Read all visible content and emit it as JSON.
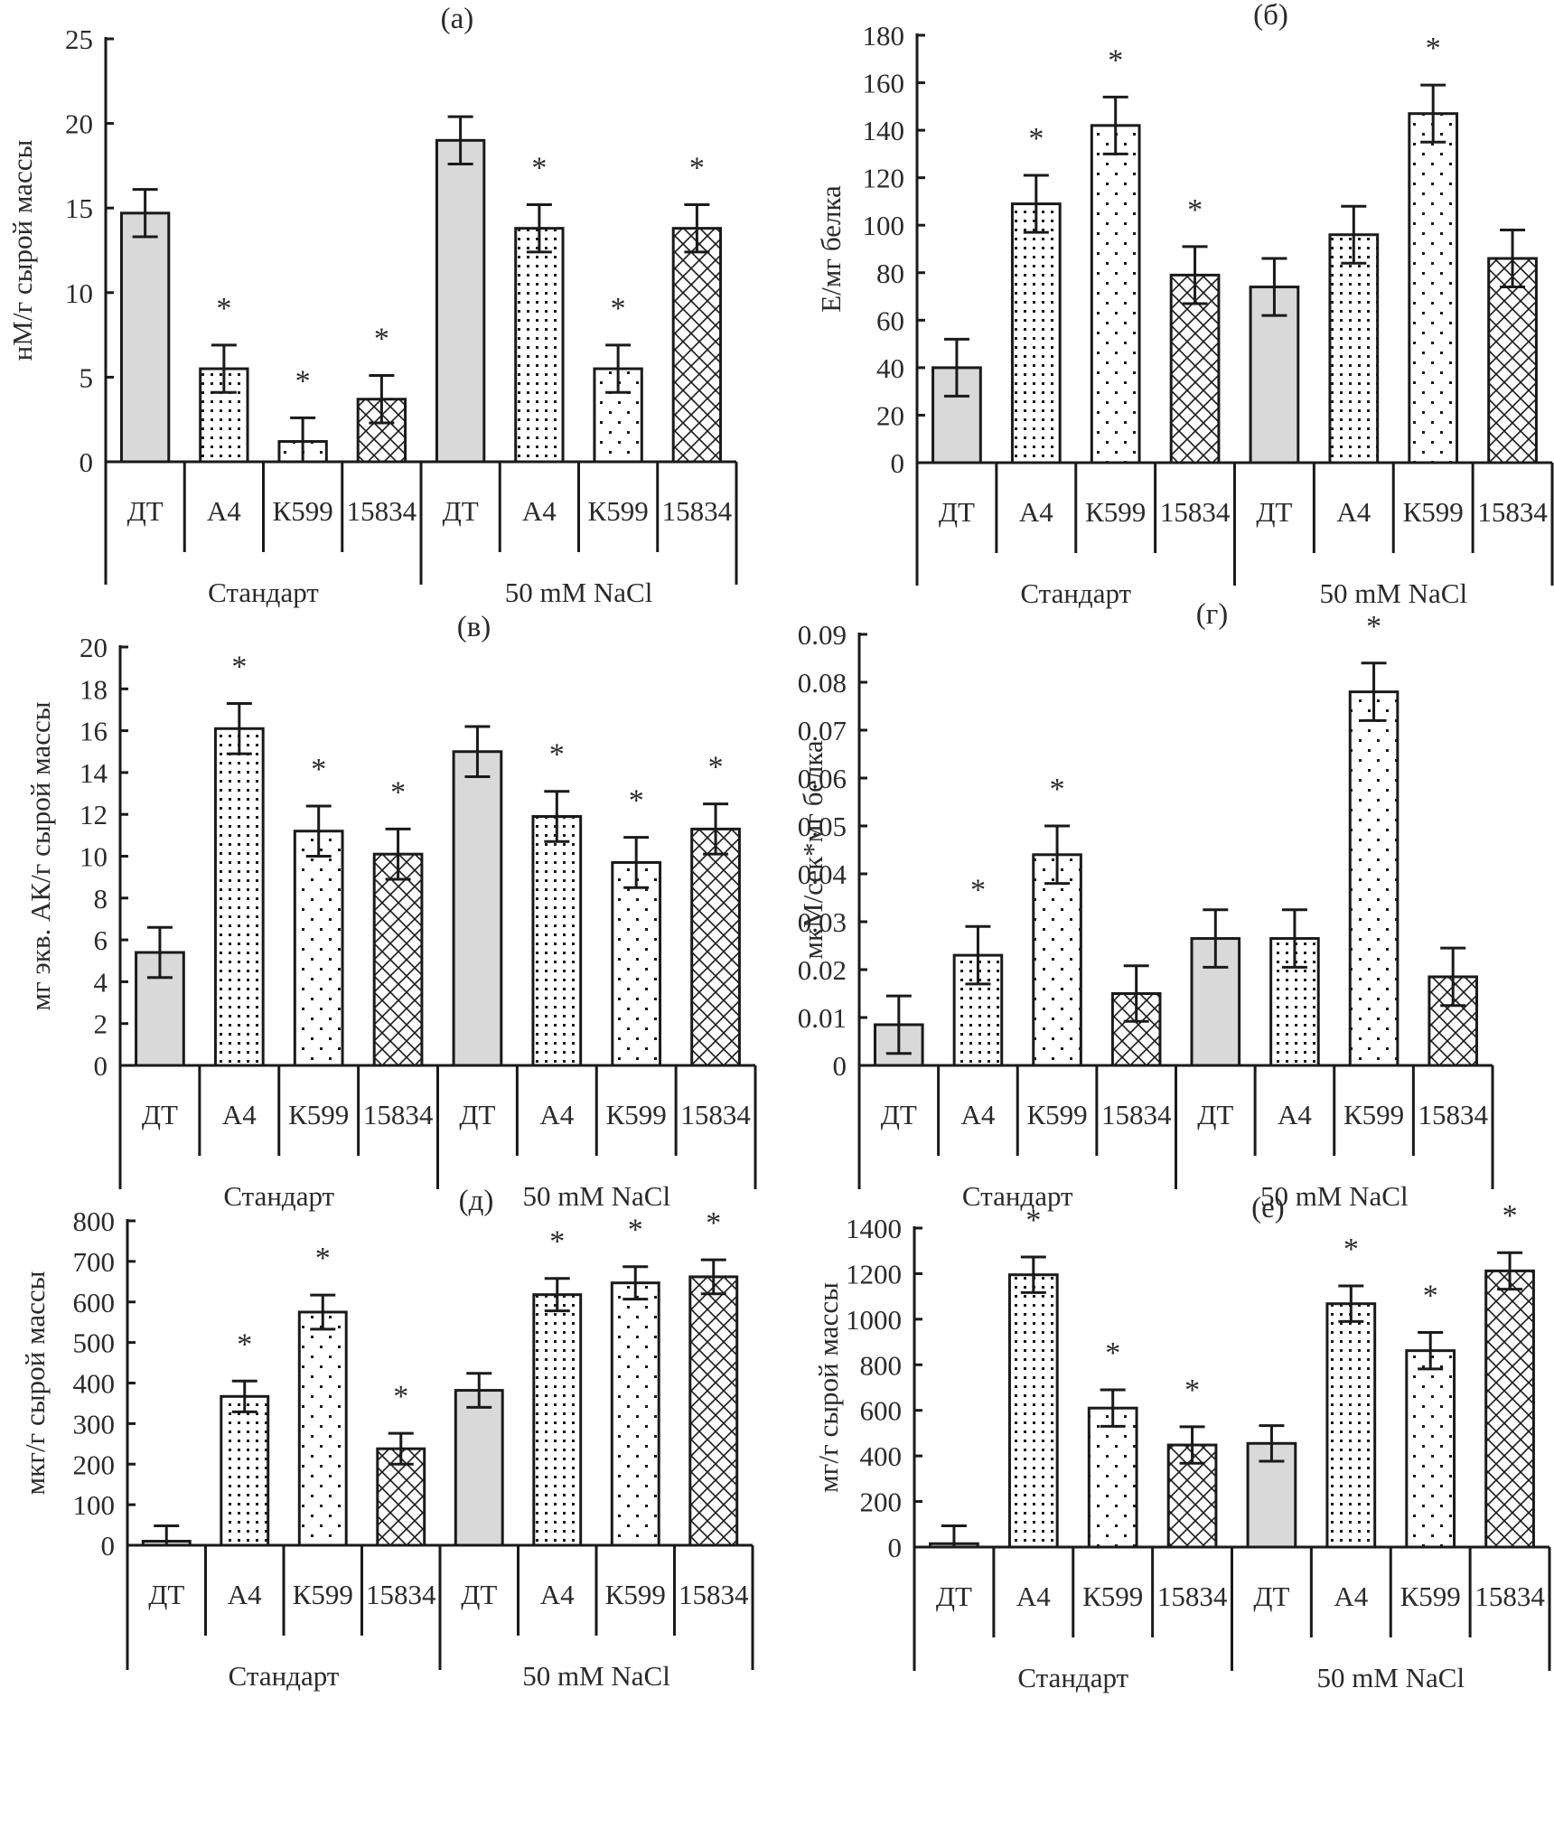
{
  "figure": {
    "group_labels": [
      "Стандарт",
      "50 mM NaCl"
    ],
    "category_labels": [
      "ДТ",
      "А4",
      "К599",
      "15834"
    ],
    "significance_marker": "*",
    "pattern_names": [
      "solid-gray",
      "dense-dots",
      "sparse-dots",
      "crosshatch"
    ],
    "colors": {
      "dt_fill": "#d9d9d9",
      "line": "#1a1a1a",
      "background": "#ffffff"
    }
  },
  "chart_data": [
    {
      "type": "bar",
      "panel": "(а)",
      "title": "(а)",
      "ylabel": "нМ/г сырой массы",
      "xlabel": "",
      "ylim": [
        0,
        25
      ],
      "yticks": [
        0,
        5,
        10,
        15,
        20,
        25
      ],
      "grid": false,
      "groups": [
        "Стандарт",
        "50 mM NaCl"
      ],
      "categories": [
        "ДТ",
        "А4",
        "К599",
        "15834",
        "ДТ",
        "А4",
        "К599",
        "15834"
      ],
      "values": [
        14.7,
        5.5,
        1.2,
        3.7,
        19.0,
        13.8,
        5.5,
        13.8
      ],
      "errors": [
        1.4,
        1.4,
        1.4,
        1.4,
        1.4,
        1.4,
        1.4,
        1.4
      ],
      "significant": [
        false,
        true,
        true,
        true,
        false,
        true,
        true,
        true
      ]
    },
    {
      "type": "bar",
      "panel": "(б)",
      "title": "(б)",
      "ylabel": "Е/мг белка",
      "xlabel": "",
      "ylim": [
        0,
        180
      ],
      "yticks": [
        0,
        20,
        40,
        60,
        80,
        100,
        120,
        140,
        160,
        180
      ],
      "grid": false,
      "groups": [
        "Стандарт",
        "50 mM NaCl"
      ],
      "categories": [
        "ДТ",
        "А4",
        "К599",
        "15834",
        "ДТ",
        "А4",
        "К599",
        "15834"
      ],
      "values": [
        40,
        109,
        142,
        79,
        74,
        96,
        147,
        86
      ],
      "errors": [
        12,
        12,
        12,
        12,
        12,
        12,
        12,
        12
      ],
      "significant": [
        false,
        true,
        true,
        true,
        false,
        false,
        true,
        false
      ]
    },
    {
      "type": "bar",
      "panel": "(в)",
      "title": "(в)",
      "ylabel": "мг экв. АК/г сырой массы",
      "xlabel": "",
      "ylim": [
        0,
        20
      ],
      "yticks": [
        0,
        2,
        4,
        6,
        8,
        10,
        12,
        14,
        16,
        18,
        20
      ],
      "grid": false,
      "groups": [
        "Стандарт",
        "50 mM NaCl"
      ],
      "categories": [
        "ДТ",
        "А4",
        "К599",
        "15834",
        "ДТ",
        "А4",
        "К599",
        "15834"
      ],
      "values": [
        5.4,
        16.1,
        11.2,
        10.1,
        15.0,
        11.9,
        9.7,
        11.3
      ],
      "errors": [
        1.2,
        1.2,
        1.2,
        1.2,
        1.2,
        1.2,
        1.2,
        1.2
      ],
      "significant": [
        false,
        true,
        true,
        true,
        false,
        true,
        true,
        true
      ]
    },
    {
      "type": "bar",
      "panel": "(г)",
      "title": "(г)",
      "ylabel": "мкМ/сек*мг белка",
      "xlabel": "",
      "ylim": [
        0,
        0.09
      ],
      "yticks": [
        0,
        0.01,
        0.02,
        0.03,
        0.04,
        0.05,
        0.06,
        0.07,
        0.08,
        0.09
      ],
      "ytick_labels": [
        "0",
        "0.01",
        "0.02",
        "0.03",
        "0.04",
        "0.05",
        "0.06",
        "0.07",
        "0.08",
        "0.09"
      ],
      "grid": false,
      "groups": [
        "Стандарт",
        "50 mM NaCl"
      ],
      "categories": [
        "ДТ",
        "А4",
        "К599",
        "15834",
        "ДТ",
        "А4",
        "К599",
        "15834"
      ],
      "values": [
        0.0085,
        0.023,
        0.044,
        0.015,
        0.0265,
        0.0265,
        0.078,
        0.0185
      ],
      "errors": [
        0.006,
        0.006,
        0.006,
        0.0058,
        0.006,
        0.006,
        0.006,
        0.006
      ],
      "significant": [
        false,
        true,
        true,
        false,
        false,
        false,
        true,
        false
      ]
    },
    {
      "type": "bar",
      "panel": "(д)",
      "title": "(д)",
      "ylabel": "мкг/г сырой массы",
      "xlabel": "",
      "ylim": [
        0,
        800
      ],
      "yticks": [
        0,
        100,
        200,
        300,
        400,
        500,
        600,
        700,
        800
      ],
      "grid": false,
      "groups": [
        "Стандарт",
        "50 mM NaCl"
      ],
      "categories": [
        "ДТ",
        "А4",
        "К599",
        "15834",
        "ДТ",
        "А4",
        "К599",
        "15834"
      ],
      "values": [
        10,
        367,
        575,
        238,
        382,
        618,
        647,
        662
      ],
      "errors": [
        38,
        38,
        42,
        38,
        42,
        40,
        40,
        42
      ],
      "significant": [
        false,
        true,
        true,
        true,
        false,
        true,
        true,
        true
      ]
    },
    {
      "type": "bar",
      "panel": "(е)",
      "title": "(е)",
      "ylabel": "мг/г сырой массы",
      "xlabel": "",
      "ylim": [
        0,
        1400
      ],
      "yticks": [
        0,
        200,
        400,
        600,
        800,
        1000,
        1200,
        1400
      ],
      "grid": false,
      "groups": [
        "Стандарт",
        "50 mM NaCl"
      ],
      "categories": [
        "ДТ",
        "А4",
        "К599",
        "15834",
        "ДТ",
        "А4",
        "К599",
        "15834"
      ],
      "values": [
        15,
        1195,
        610,
        448,
        455,
        1068,
        862,
        1212
      ],
      "errors": [
        78,
        78,
        80,
        80,
        78,
        78,
        80,
        80
      ],
      "significant": [
        false,
        true,
        true,
        true,
        false,
        true,
        true,
        true
      ]
    }
  ]
}
